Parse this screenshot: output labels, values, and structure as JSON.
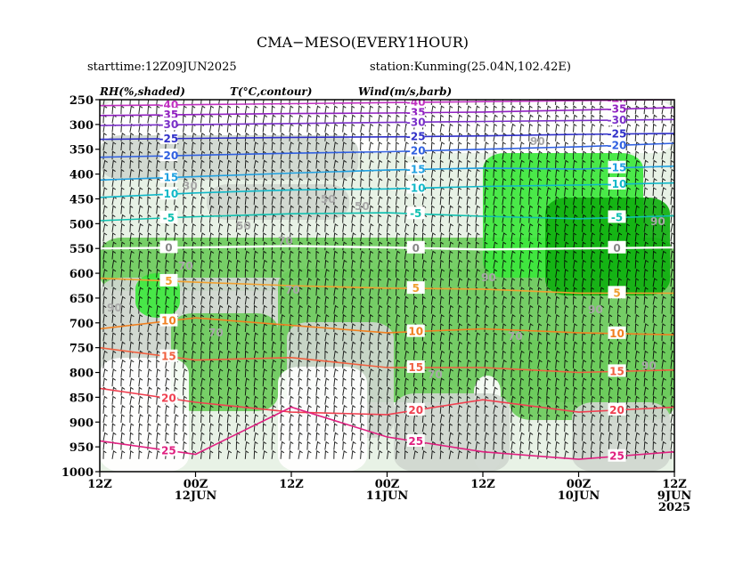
{
  "header": {
    "title": "CMA−MESO(EVERY1HOUR)",
    "starttime": "starttime:12Z09JUN2025",
    "station": "station:Kunming(25.04N,102.42E)",
    "legend_rh": "RH(%,shaded)",
    "legend_t": "T(°C,contour)",
    "legend_wind": "Wind(m/s,barb)"
  },
  "chart_data": {
    "type": "heatmap",
    "title": "CMA−MESO(EVERY1HOUR)",
    "ylabel": "",
    "xlabel": "",
    "y_scale": "pressure (reversed, top=250)",
    "ylim": [
      1000,
      250
    ],
    "y_ticks": [
      "250",
      "300",
      "350",
      "400",
      "450",
      "500",
      "550",
      "600",
      "650",
      "700",
      "750",
      "800",
      "850",
      "900",
      "950",
      "1000"
    ],
    "x_axis_direction": "time decreasing left to right",
    "x_ticks": [
      {
        "line1": "12Z",
        "line2": "",
        "line3": ""
      },
      {
        "line1": "00Z",
        "line2": "12JUN",
        "line3": ""
      },
      {
        "line1": "12Z",
        "line2": "",
        "line3": ""
      },
      {
        "line1": "00Z",
        "line2": "11JUN",
        "line3": ""
      },
      {
        "line1": "12Z",
        "line2": "",
        "line3": ""
      },
      {
        "line1": "00Z",
        "line2": "10JUN",
        "line3": ""
      },
      {
        "line1": "12Z",
        "line2": "9JUN",
        "line3": "2025"
      }
    ],
    "x_hours_before_end": [
      72,
      60,
      48,
      36,
      24,
      12,
      0
    ],
    "temperature_contours": [
      {
        "label": "-40",
        "color": "#c030c0",
        "p": [
          262,
          260,
          258,
          256,
          254,
          252,
          250
        ]
      },
      {
        "label": "-35",
        "color": "#9020c0",
        "p": [
          282,
          280,
          278,
          277,
          275,
          271,
          266
        ]
      },
      {
        "label": "-30",
        "color": "#7a30c8",
        "p": [
          302,
          300,
          298,
          296,
          294,
          292,
          290
        ]
      },
      {
        "label": "-25",
        "color": "#3030c8",
        "p": [
          330,
          328,
          326,
          325,
          323,
          320,
          318
        ]
      },
      {
        "label": "-20",
        "color": "#3060e0",
        "p": [
          366,
          362,
          358,
          355,
          350,
          345,
          338
        ]
      },
      {
        "label": "-15",
        "color": "#20a0e0",
        "p": [
          412,
          405,
          398,
          392,
          388,
          390,
          384
        ]
      },
      {
        "label": "-10",
        "color": "#10b8c8",
        "p": [
          447,
          438,
          432,
          430,
          425,
          422,
          418
        ]
      },
      {
        "label": "-5",
        "color": "#10c0b0",
        "p": [
          494,
          486,
          480,
          478,
          485,
          490,
          484
        ]
      },
      {
        "label": "0",
        "color": "#ffffff",
        "p": [
          550,
          548,
          545,
          548,
          552,
          550,
          548
        ]
      },
      {
        "label": "5",
        "color": "#f0a030",
        "p": [
          610,
          618,
          625,
          630,
          632,
          640,
          640
        ]
      },
      {
        "label": "10",
        "color": "#f08020",
        "p": [
          712,
          690,
          705,
          720,
          712,
          720,
          724
        ]
      },
      {
        "label": "15",
        "color": "#f06040",
        "p": [
          750,
          775,
          770,
          790,
          790,
          800,
          795
        ]
      },
      {
        "label": "20",
        "color": "#f04050",
        "p": [
          832,
          860,
          880,
          885,
          855,
          880,
          870
        ]
      },
      {
        "label": "25",
        "color": "#e02080",
        "p": [
          938,
          965,
          870,
          930,
          960,
          975,
          960
        ]
      }
    ],
    "rh_labels": [
      "30",
      "50",
      "50",
      "50",
      "70",
      "70",
      "70",
      "70",
      "70",
      "70",
      "90",
      "90",
      "90",
      "90",
      "90",
      "90"
    ],
    "rh_levels": [
      30,
      50,
      70,
      90
    ],
    "rh_colors": {
      "30": "#ffffff",
      "50": "#e8f2e6",
      "70": "#cfd7cf",
      "80": "#6ccc5c",
      "90": "#3ce83c",
      "95": "#10b010"
    }
  }
}
